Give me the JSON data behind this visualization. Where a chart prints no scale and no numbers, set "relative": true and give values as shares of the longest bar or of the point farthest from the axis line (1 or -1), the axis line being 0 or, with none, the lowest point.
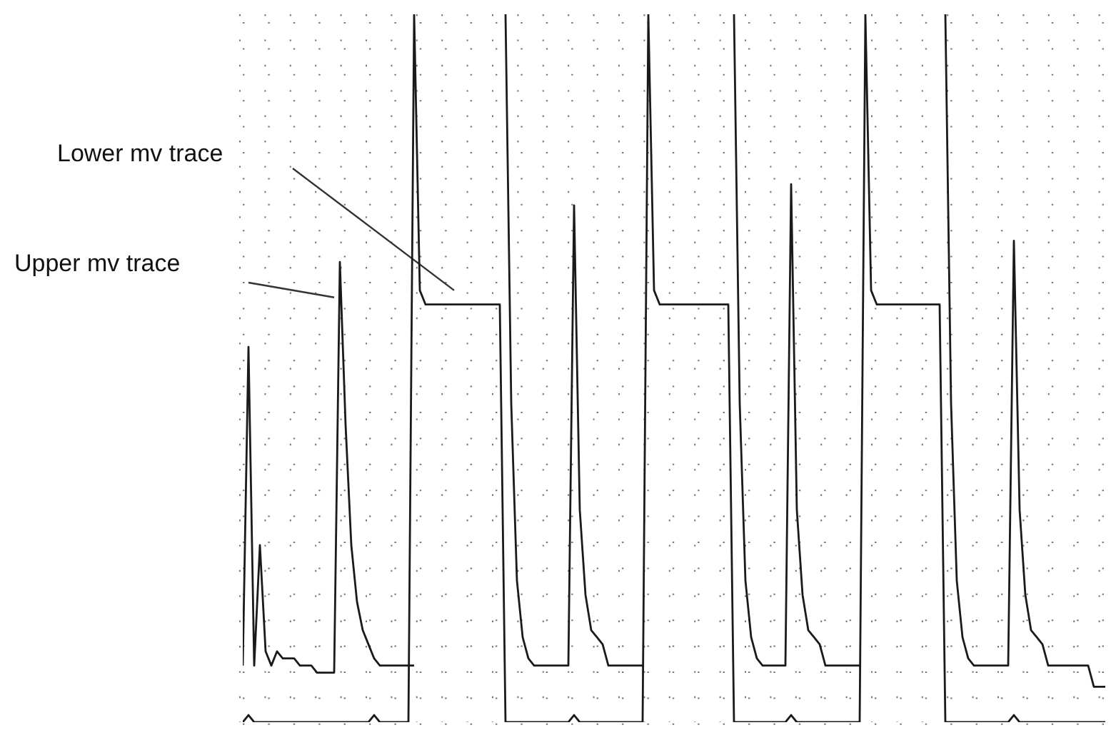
{
  "chart_data": {
    "type": "line",
    "relative": true,
    "grid": true,
    "categories": [
      null,
      null,
      null,
      null,
      null,
      null,
      null,
      null,
      null,
      null,
      null,
      null,
      null,
      null,
      null,
      null,
      null,
      null,
      null,
      null,
      null,
      null,
      null,
      null,
      null,
      null,
      null,
      null,
      null,
      null,
      null,
      null,
      null,
      null,
      null,
      null,
      null,
      null,
      null,
      null,
      null,
      null,
      null,
      null,
      null,
      null,
      null,
      null,
      null,
      null,
      null,
      null,
      null,
      null,
      null,
      null,
      null,
      null,
      null,
      null,
      null,
      null,
      null,
      null,
      null,
      null,
      null,
      null,
      null,
      null,
      null,
      null,
      null,
      null,
      null,
      null,
      null,
      null,
      null,
      null,
      null,
      null,
      null,
      null,
      null,
      null,
      null,
      null,
      null,
      null,
      null,
      null,
      null,
      null,
      null,
      null,
      null,
      null,
      null,
      null,
      null,
      null,
      null,
      null,
      null,
      null,
      null,
      null,
      null,
      null,
      null,
      null,
      null,
      null,
      null,
      null,
      null,
      null,
      null,
      null,
      null,
      null,
      null,
      null,
      null,
      null,
      null,
      null,
      null,
      null,
      null,
      null,
      null,
      null,
      null,
      null,
      null,
      null,
      null,
      null,
      null,
      null,
      null,
      null,
      null,
      null,
      null,
      null,
      null,
      null,
      null,
      null
    ],
    "annotations": [
      "Upper mv trace",
      "Lower mv trace"
    ],
    "series": [
      {
        "color": "#1a1a1a",
        "values": [
          0.08,
          0.53,
          0.08,
          0.25,
          0.1,
          0.08,
          0.1,
          0.09,
          0.09,
          0.09,
          0.08,
          0.08,
          0.08,
          0.07,
          0.07,
          0.07,
          0.07,
          0.65,
          0.42,
          0.25,
          0.17,
          0.13,
          0.11,
          0.09,
          0.08,
          0.08,
          0.08,
          0.08,
          0.08,
          0.08,
          0.08,
          null,
          null,
          null,
          null,
          null,
          null,
          null,
          null,
          null,
          null,
          null,
          null,
          null,
          null,
          null,
          1,
          0.45,
          0.2,
          0.12,
          0.09,
          0.08,
          0.08,
          0.08,
          0.08,
          0.08,
          0.08,
          0.08,
          0.73,
          0.3,
          0.18,
          0.13,
          0.12,
          0.11,
          0.08,
          0.08,
          0.08,
          0.08,
          0.08,
          0.08,
          0.08,
          null,
          null,
          null,
          null,
          null,
          null,
          null,
          null,
          null,
          null,
          null,
          null,
          null,
          null,
          null,
          1,
          0.45,
          0.2,
          0.12,
          0.09,
          0.08,
          0.08,
          0.08,
          0.08,
          0.08,
          0.76,
          0.3,
          0.18,
          0.13,
          0.12,
          0.11,
          0.08,
          0.08,
          0.08,
          0.08,
          0.08,
          0.08,
          0.08,
          null,
          null,
          null,
          null,
          null,
          null,
          null,
          null,
          null,
          null,
          null,
          null,
          null,
          null,
          1,
          0.45,
          0.2,
          0.12,
          0.09,
          0.08,
          0.08,
          0.08,
          0.08,
          0.08,
          0.08,
          0.08,
          0.68,
          0.3,
          0.18,
          0.13,
          0.12,
          0.11,
          0.08,
          0.08,
          0.08,
          0.08,
          0.08,
          0.08,
          0.08,
          0.08,
          0.05,
          0.05,
          0.05
        ]
      },
      {
        "color": "#1a1a1a",
        "values": [
          0,
          0.01,
          0,
          0,
          0,
          0,
          0,
          0,
          0,
          0,
          0,
          0,
          0,
          0,
          0,
          0,
          0,
          0,
          0,
          0,
          0,
          0,
          0,
          0.01,
          0,
          0,
          0,
          0,
          0,
          0,
          1,
          0.61,
          0.59,
          0.59,
          0.59,
          0.59,
          0.59,
          0.59,
          0.59,
          0.59,
          0.59,
          0.59,
          0.59,
          0.59,
          0.59,
          0.59,
          0,
          0,
          0,
          0,
          0,
          0,
          0,
          0,
          0,
          0,
          0,
          0,
          0.01,
          0,
          0,
          0,
          0,
          0,
          0,
          0,
          0,
          0,
          0,
          0,
          0,
          1,
          0.61,
          0.59,
          0.59,
          0.59,
          0.59,
          0.59,
          0.59,
          0.59,
          0.59,
          0.59,
          0.59,
          0.59,
          0.59,
          0.59,
          0,
          0,
          0,
          0,
          0,
          0,
          0,
          0,
          0,
          0,
          0.01,
          0,
          0,
          0,
          0,
          0,
          0,
          0,
          0,
          0,
          0,
          0,
          0,
          1,
          0.61,
          0.59,
          0.59,
          0.59,
          0.59,
          0.59,
          0.59,
          0.59,
          0.59,
          0.59,
          0.59,
          0.59,
          0.59,
          0,
          0,
          0,
          0,
          0,
          0,
          0,
          0,
          0,
          0,
          0,
          0,
          0.01,
          0,
          0,
          0,
          0,
          0,
          0,
          0,
          0,
          0,
          0,
          0,
          0,
          0,
          0,
          0,
          0
        ]
      }
    ]
  }
}
